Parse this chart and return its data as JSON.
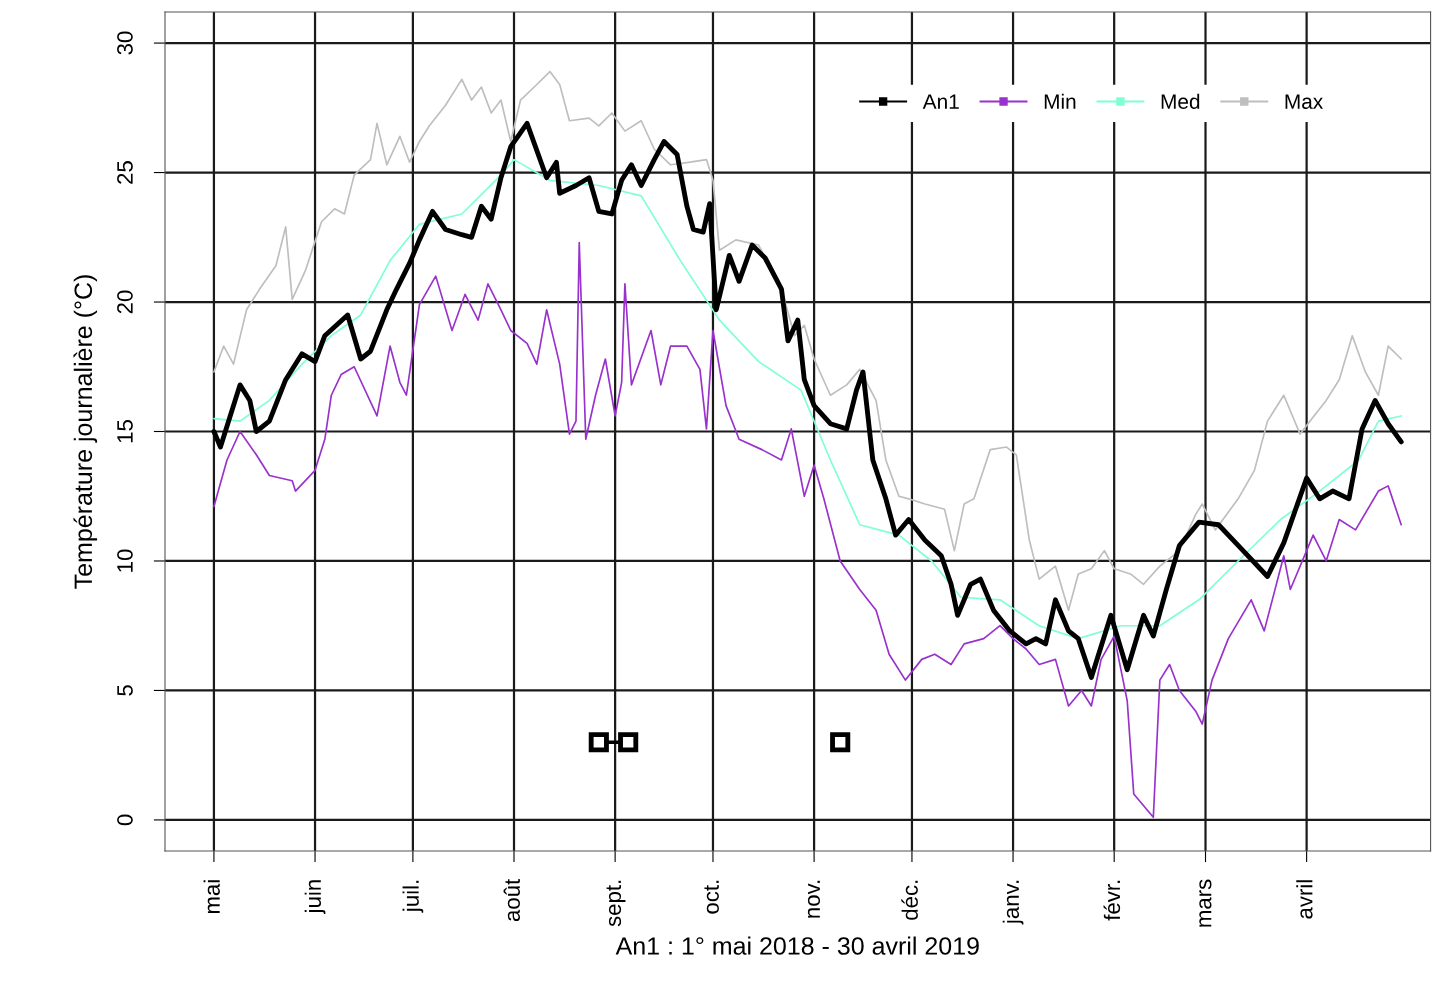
{
  "chart_data": {
    "type": "line",
    "xlabel": "An1 : 1° mai 2018 - 30 avril 2019",
    "ylabel": "Température journalière (°C)",
    "xlim": [
      "2018-04-16",
      "2019-05-09"
    ],
    "ylim": [
      -1.2,
      31.2
    ],
    "xticks": [
      {
        "value": "2018-05-01",
        "label": "mai"
      },
      {
        "value": "2018-06-01",
        "label": "juin"
      },
      {
        "value": "2018-07-01",
        "label": "juil."
      },
      {
        "value": "2018-08-01",
        "label": "août"
      },
      {
        "value": "2018-09-01",
        "label": "sept."
      },
      {
        "value": "2018-10-01",
        "label": "oct."
      },
      {
        "value": "2018-11-01",
        "label": "nov."
      },
      {
        "value": "2018-12-01",
        "label": "déc."
      },
      {
        "value": "2019-01-01",
        "label": "janv."
      },
      {
        "value": "2019-02-01",
        "label": "févr."
      },
      {
        "value": "2019-03-01",
        "label": "mars"
      },
      {
        "value": "2019-04-01",
        "label": "avril"
      }
    ],
    "yticks": [
      0,
      5,
      10,
      15,
      20,
      25,
      30
    ],
    "grid": true,
    "legend": "top right",
    "series": [
      {
        "name": "An1",
        "color": "#000000",
        "x": [
          "2018-05-01",
          "2018-05-03",
          "2018-05-09",
          "2018-05-12",
          "2018-05-14",
          "2018-05-18",
          "2018-05-23",
          "2018-05-28",
          "2018-06-01",
          "2018-06-04",
          "2018-06-11",
          "2018-06-15",
          "2018-06-18",
          "2018-06-23",
          "2018-06-26",
          "2018-06-30",
          "2018-07-03",
          "2018-07-07",
          "2018-07-11",
          "2018-07-16",
          "2018-07-19",
          "2018-07-22",
          "2018-07-25",
          "2018-07-28",
          "2018-07-31",
          "2018-08-05",
          "2018-08-11",
          "2018-08-14",
          "2018-08-15",
          "2018-08-20",
          "2018-08-24",
          "2018-08-27",
          "2018-08-31",
          "2018-09-03",
          "2018-09-06",
          "2018-09-09",
          "2018-09-13",
          "2018-09-16",
          "2018-09-20",
          "2018-09-23",
          "2018-09-25",
          "2018-09-28",
          "2018-09-30",
          "2018-10-02",
          "2018-10-06",
          "2018-10-09",
          "2018-10-13",
          "2018-10-17",
          "2018-10-22",
          "2018-10-24",
          "2018-10-27",
          "2018-10-29",
          "2018-11-01",
          "2018-11-06",
          "2018-11-11",
          "2018-11-14",
          "2018-11-16",
          "2018-11-19",
          "2018-11-23",
          "2018-11-26",
          "2018-11-30",
          "2018-12-05",
          "2018-12-10",
          "2018-12-13",
          "2018-12-15",
          "2018-12-19",
          "2018-12-22",
          "2018-12-26",
          "2018-12-31",
          "2019-01-05",
          "2019-01-08",
          "2019-01-11",
          "2019-01-14",
          "2019-01-18",
          "2019-01-21",
          "2019-01-25",
          "2019-01-31",
          "2019-02-05",
          "2019-02-10",
          "2019-02-13",
          "2019-02-17",
          "2019-02-21",
          "2019-02-27",
          "2019-03-05",
          "2019-03-11",
          "2019-03-20",
          "2019-03-25",
          "2019-04-01",
          "2019-04-05",
          "2019-04-09",
          "2019-04-14",
          "2019-04-18",
          "2019-04-22",
          "2019-04-26",
          "2019-04-30"
        ],
        "values": [
          15.0,
          14.4,
          16.8,
          16.2,
          15.0,
          15.4,
          17.0,
          18.0,
          17.7,
          18.7,
          19.5,
          17.8,
          18.1,
          19.7,
          20.5,
          21.5,
          22.4,
          23.5,
          22.8,
          22.6,
          22.5,
          23.7,
          23.2,
          24.8,
          26.0,
          26.9,
          24.8,
          25.4,
          24.2,
          24.5,
          24.8,
          23.5,
          23.4,
          24.7,
          25.3,
          24.5,
          25.5,
          26.2,
          25.7,
          23.7,
          22.8,
          22.7,
          23.8,
          19.7,
          21.8,
          20.8,
          22.2,
          21.7,
          20.5,
          18.5,
          19.3,
          17.0,
          16.0,
          15.3,
          15.1,
          16.6,
          17.3,
          13.9,
          12.4,
          11.0,
          11.6,
          10.8,
          10.2,
          9.1,
          7.9,
          9.1,
          9.3,
          8.1,
          7.3,
          6.8,
          7.0,
          6.8,
          8.5,
          7.3,
          7.0,
          5.5,
          7.9,
          5.8,
          7.9,
          7.1,
          8.9,
          10.6,
          11.5,
          11.4,
          10.6,
          9.4,
          10.7,
          13.2,
          12.4,
          12.7,
          12.4,
          15.1,
          16.2,
          15.3,
          14.6
        ]
      },
      {
        "name": "Min",
        "color": "#9932cc",
        "x": [
          "2018-05-01",
          "2018-05-05",
          "2018-05-09",
          "2018-05-14",
          "2018-05-18",
          "2018-05-25",
          "2018-05-26",
          "2018-06-01",
          "2018-06-04",
          "2018-06-06",
          "2018-06-09",
          "2018-06-13",
          "2018-06-20",
          "2018-06-24",
          "2018-06-27",
          "2018-06-29",
          "2018-07-03",
          "2018-07-08",
          "2018-07-13",
          "2018-07-17",
          "2018-07-21",
          "2018-07-24",
          "2018-07-28",
          "2018-07-31",
          "2018-08-05",
          "2018-08-08",
          "2018-08-11",
          "2018-08-15",
          "2018-08-18",
          "2018-08-20",
          "2018-08-21",
          "2018-08-23",
          "2018-08-26",
          "2018-08-29",
          "2018-09-01",
          "2018-09-03",
          "2018-09-04",
          "2018-09-06",
          "2018-09-12",
          "2018-09-15",
          "2018-09-18",
          "2018-09-23",
          "2018-09-27",
          "2018-09-29",
          "2018-10-01",
          "2018-10-05",
          "2018-10-09",
          "2018-10-16",
          "2018-10-22",
          "2018-10-25",
          "2018-10-29",
          "2018-11-01",
          "2018-11-04",
          "2018-11-09",
          "2018-11-15",
          "2018-11-20",
          "2018-11-24",
          "2018-11-29",
          "2018-12-04",
          "2018-12-08",
          "2018-12-13",
          "2018-12-17",
          "2018-12-23",
          "2018-12-28",
          "2019-01-01",
          "2019-01-05",
          "2019-01-09",
          "2019-01-14",
          "2019-01-18",
          "2019-01-22",
          "2019-01-25",
          "2019-01-28",
          "2019-02-01",
          "2019-02-05",
          "2019-02-07",
          "2019-02-11",
          "2019-02-13",
          "2019-02-15",
          "2019-02-18",
          "2019-02-21",
          "2019-02-26",
          "2019-02-28",
          "2019-03-03",
          "2019-03-08",
          "2019-03-15",
          "2019-03-19",
          "2019-03-25",
          "2019-03-27",
          "2019-04-03",
          "2019-04-07",
          "2019-04-11",
          "2019-04-16",
          "2019-04-23",
          "2019-04-26",
          "2019-04-30"
        ],
        "values": [
          12.1,
          13.9,
          15.0,
          14.1,
          13.3,
          13.1,
          12.7,
          13.5,
          14.7,
          16.4,
          17.2,
          17.5,
          15.6,
          18.3,
          16.9,
          16.4,
          19.9,
          21.0,
          18.9,
          20.3,
          19.3,
          20.7,
          19.7,
          18.9,
          18.4,
          17.6,
          19.7,
          17.6,
          14.9,
          15.4,
          22.3,
          14.7,
          16.4,
          17.8,
          15.6,
          16.9,
          20.7,
          16.8,
          18.9,
          16.8,
          18.3,
          18.3,
          17.4,
          15.1,
          18.9,
          16.0,
          14.7,
          14.3,
          13.9,
          15.1,
          12.5,
          13.7,
          12.4,
          10.0,
          8.9,
          8.1,
          6.4,
          5.4,
          6.2,
          6.4,
          6.0,
          6.8,
          7.0,
          7.5,
          7.0,
          6.6,
          6.0,
          6.2,
          4.4,
          5.0,
          4.4,
          6.2,
          7.1,
          4.6,
          1.0,
          0.4,
          0.1,
          5.4,
          6.0,
          5.0,
          4.2,
          3.7,
          5.4,
          7.0,
          8.5,
          7.3,
          10.2,
          8.9,
          11.0,
          10.0,
          11.6,
          11.2,
          12.7,
          12.9,
          11.4
        ]
      },
      {
        "name": "Med",
        "color": "#7fffd4",
        "x": [
          "2018-05-01",
          "2018-05-09",
          "2018-05-18",
          "2018-05-28",
          "2018-06-06",
          "2018-06-15",
          "2018-06-24",
          "2018-07-03",
          "2018-07-16",
          "2018-07-28",
          "2018-08-01",
          "2018-08-12",
          "2018-08-27",
          "2018-09-09",
          "2018-09-21",
          "2018-10-03",
          "2018-10-15",
          "2018-10-28",
          "2018-11-06",
          "2018-11-15",
          "2018-11-27",
          "2018-12-07",
          "2018-12-16",
          "2018-12-28",
          "2019-01-09",
          "2019-01-21",
          "2019-02-03",
          "2019-02-15",
          "2019-02-27",
          "2019-03-11",
          "2019-03-24",
          "2019-04-05",
          "2019-04-17",
          "2019-04-23",
          "2019-04-30"
        ],
        "values": [
          15.5,
          15.4,
          16.2,
          17.6,
          18.7,
          19.5,
          21.6,
          23.0,
          23.4,
          24.9,
          25.5,
          24.7,
          24.5,
          24.1,
          21.6,
          19.3,
          17.7,
          16.6,
          13.9,
          11.4,
          11.0,
          10.0,
          8.6,
          8.5,
          7.5,
          7.0,
          7.5,
          7.5,
          8.5,
          10.0,
          11.6,
          12.7,
          13.9,
          15.4,
          15.6
        ]
      },
      {
        "name": "Max",
        "color": "#bebebe",
        "x": [
          "2018-05-01",
          "2018-05-04",
          "2018-05-07",
          "2018-05-11",
          "2018-05-15",
          "2018-05-20",
          "2018-05-23",
          "2018-05-25",
          "2018-05-29",
          "2018-06-03",
          "2018-06-07",
          "2018-06-10",
          "2018-06-13",
          "2018-06-18",
          "2018-06-20",
          "2018-06-23",
          "2018-06-27",
          "2018-06-30",
          "2018-07-03",
          "2018-07-06",
          "2018-07-11",
          "2018-07-16",
          "2018-07-19",
          "2018-07-22",
          "2018-07-25",
          "2018-07-28",
          "2018-07-31",
          "2018-08-03",
          "2018-08-08",
          "2018-08-12",
          "2018-08-15",
          "2018-08-18",
          "2018-08-24",
          "2018-08-27",
          "2018-08-31",
          "2018-09-04",
          "2018-09-09",
          "2018-09-13",
          "2018-09-18",
          "2018-09-24",
          "2018-09-29",
          "2018-10-01",
          "2018-10-03",
          "2018-10-08",
          "2018-10-15",
          "2018-10-22",
          "2018-10-26",
          "2018-10-29",
          "2018-11-01",
          "2018-11-06",
          "2018-11-11",
          "2018-11-15",
          "2018-11-20",
          "2018-11-23",
          "2018-11-27",
          "2018-11-30",
          "2018-12-05",
          "2018-12-11",
          "2018-12-14",
          "2018-12-17",
          "2018-12-20",
          "2018-12-25",
          "2018-12-30",
          "2019-01-02",
          "2019-01-06",
          "2019-01-09",
          "2019-01-14",
          "2019-01-18",
          "2019-01-21",
          "2019-01-25",
          "2019-01-29",
          "2019-02-01",
          "2019-02-06",
          "2019-02-10",
          "2019-02-15",
          "2019-02-21",
          "2019-02-26",
          "2019-02-28",
          "2019-03-04",
          "2019-03-11",
          "2019-03-16",
          "2019-03-20",
          "2019-03-25",
          "2019-03-30",
          "2019-04-02",
          "2019-04-07",
          "2019-04-11",
          "2019-04-15",
          "2019-04-19",
          "2019-04-23",
          "2019-04-26",
          "2019-04-30"
        ],
        "values": [
          17.3,
          18.3,
          17.6,
          19.7,
          20.5,
          21.4,
          22.9,
          20.1,
          21.2,
          23.1,
          23.6,
          23.4,
          24.9,
          25.5,
          26.9,
          25.3,
          26.4,
          25.4,
          26.2,
          26.8,
          27.6,
          28.6,
          27.8,
          28.3,
          27.3,
          27.8,
          26.2,
          27.8,
          28.4,
          28.9,
          28.4,
          27.0,
          27.1,
          26.8,
          27.3,
          26.6,
          27.0,
          25.9,
          25.3,
          25.4,
          25.5,
          24.7,
          22.0,
          22.4,
          22.2,
          20.5,
          18.7,
          19.1,
          17.8,
          16.4,
          16.8,
          17.4,
          16.2,
          13.9,
          12.5,
          12.4,
          12.2,
          12.0,
          10.4,
          12.2,
          12.4,
          14.3,
          14.4,
          14.1,
          10.8,
          9.3,
          9.8,
          8.1,
          9.5,
          9.7,
          10.4,
          9.7,
          9.5,
          9.1,
          9.8,
          10.4,
          11.8,
          12.2,
          11.2,
          12.4,
          13.5,
          15.4,
          16.4,
          14.9,
          15.4,
          16.2,
          17.0,
          18.7,
          17.3,
          16.4,
          18.3,
          17.8
        ]
      },
      {
        "color": "#000000",
        "marker": "square",
        "x": [
          "2018-08-27",
          "2018-09-05",
          "2018-10-01",
          "2018-11-09"
        ],
        "values": [
          3,
          3,
          null,
          3
        ]
      }
    ]
  }
}
